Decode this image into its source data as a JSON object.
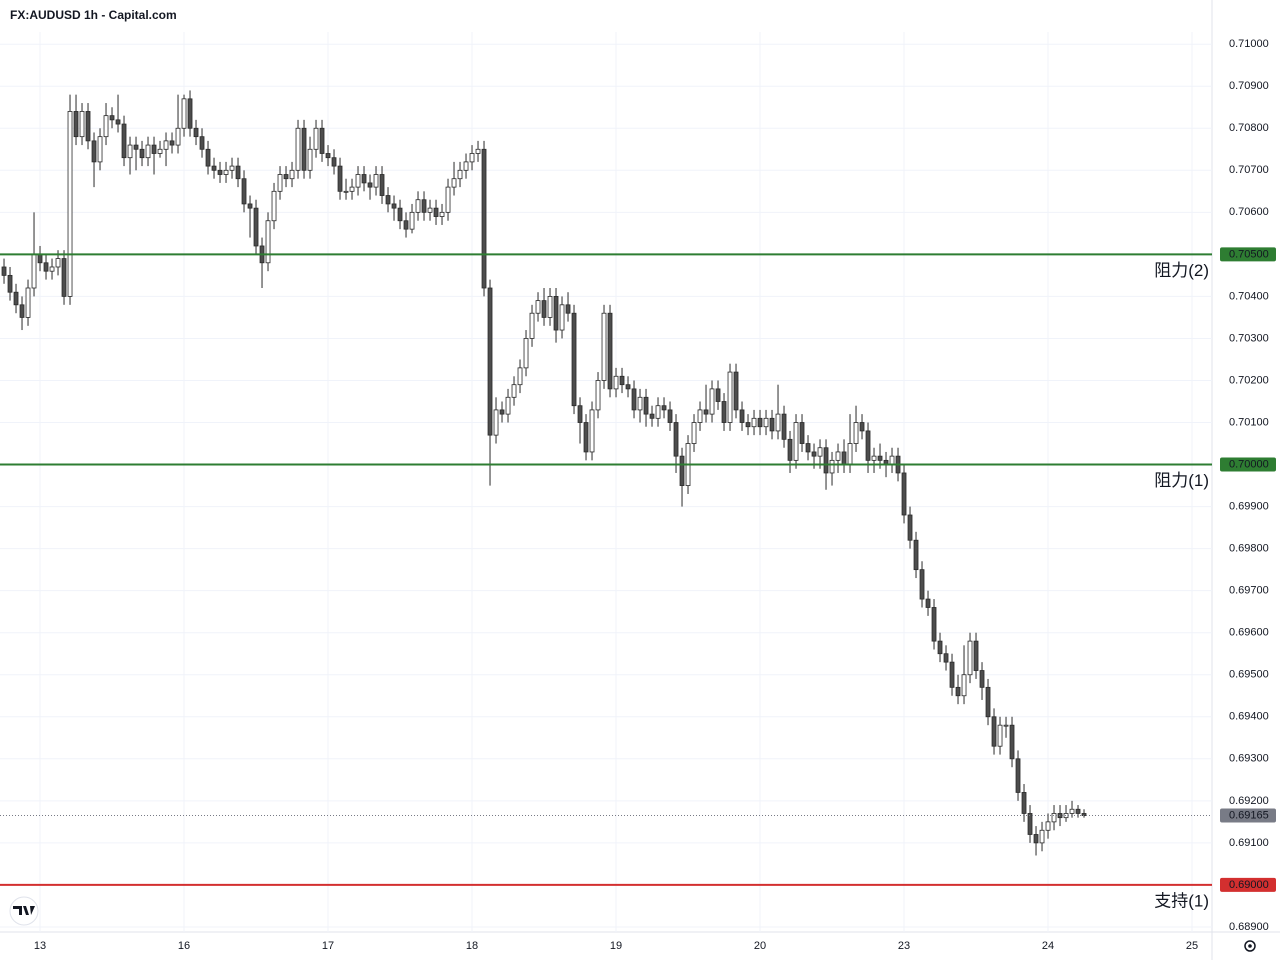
{
  "chart_data": {
    "type": "candlestick",
    "title": "FX:AUDUSD 1h - Capital.com",
    "x": [
      -6,
      -5,
      -4,
      -3,
      -2,
      -1,
      0,
      1,
      2,
      3,
      4,
      5,
      6,
      7,
      8,
      9,
      10,
      11,
      12,
      13,
      14,
      15,
      16,
      17,
      18,
      19,
      20,
      21,
      22,
      23,
      24,
      25,
      26,
      27,
      28,
      29,
      30,
      31,
      32,
      33,
      34,
      35,
      36,
      37,
      38,
      39,
      40,
      41,
      42,
      43,
      44,
      45,
      46,
      47,
      48,
      49,
      50,
      51,
      52,
      53,
      54,
      55,
      56,
      57,
      58,
      59,
      60,
      61,
      62,
      63,
      64,
      65,
      66,
      67,
      68,
      69,
      70,
      71,
      72,
      73,
      74,
      75,
      76,
      77,
      78,
      79,
      80,
      81,
      82,
      83,
      84,
      85,
      86,
      87,
      88,
      89,
      90,
      91,
      92,
      93,
      94,
      95,
      96,
      97,
      98,
      99,
      100,
      101,
      102,
      103,
      104,
      105,
      106,
      107,
      108,
      109,
      110,
      111,
      112,
      113,
      114,
      115,
      116,
      117,
      118,
      119,
      120,
      121,
      122,
      123,
      124,
      125,
      126,
      127,
      128,
      129,
      130,
      131,
      132,
      133,
      134,
      135,
      136,
      137,
      138,
      139,
      140,
      141,
      142,
      143,
      144,
      145,
      146,
      147,
      148,
      149,
      150,
      151,
      152,
      153,
      154,
      155,
      156,
      157,
      158,
      159,
      160,
      161,
      162,
      163,
      164,
      165,
      166,
      167,
      168,
      169,
      170,
      171,
      172,
      173,
      174
    ],
    "open": [
      0.7047,
      0.7045,
      0.7041,
      0.7038,
      0.7035,
      0.7042,
      0.705,
      0.7048,
      0.7046,
      0.7047,
      0.7049,
      0.704,
      0.7084,
      0.7078,
      0.7084,
      0.7077,
      0.7072,
      0.7078,
      0.7083,
      0.7082,
      0.7081,
      0.7073,
      0.7076,
      0.7075,
      0.7073,
      0.7076,
      0.7074,
      0.7075,
      0.7077,
      0.7076,
      0.708,
      0.7087,
      0.708,
      0.7078,
      0.7075,
      0.7071,
      0.707,
      0.7069,
      0.707,
      0.7071,
      0.7068,
      0.7062,
      0.7061,
      0.7052,
      0.7048,
      0.7058,
      0.7065,
      0.7069,
      0.7068,
      0.707,
      0.708,
      0.707,
      0.7075,
      0.708,
      0.7074,
      0.7073,
      0.7071,
      0.7065,
      0.7065,
      0.7066,
      0.7069,
      0.7067,
      0.7066,
      0.7069,
      0.7064,
      0.7062,
      0.7061,
      0.7058,
      0.7056,
      0.706,
      0.7063,
      0.706,
      0.7061,
      0.7059,
      0.706,
      0.7066,
      0.7068,
      0.707,
      0.7072,
      0.7074,
      0.7075,
      0.7042,
      0.7007,
      0.7013,
      0.7012,
      0.7016,
      0.7019,
      0.7023,
      0.703,
      0.7036,
      0.7039,
      0.7035,
      0.704,
      0.7032,
      0.7038,
      0.7036,
      0.7014,
      0.701,
      0.7003,
      0.7013,
      0.702,
      0.7036,
      0.7018,
      0.7021,
      0.7019,
      0.7018,
      0.7013,
      0.7016,
      0.7012,
      0.7011,
      0.7014,
      0.7013,
      0.701,
      0.7002,
      0.6995,
      0.7005,
      0.701,
      0.7013,
      0.7012,
      0.7018,
      0.7015,
      0.701,
      0.7022,
      0.7013,
      0.701,
      0.7009,
      0.7011,
      0.7009,
      0.7011,
      0.7008,
      0.7012,
      0.7006,
      0.7001,
      0.701,
      0.7005,
      0.7003,
      0.7002,
      0.7004,
      0.6998,
      0.7001,
      0.7003,
      0.7,
      0.7005,
      0.701,
      0.7008,
      0.7001,
      0.7002,
      0.7001,
      0.7,
      0.7002,
      0.6998,
      0.6988,
      0.6982,
      0.6975,
      0.6968,
      0.6966,
      0.6958,
      0.6955,
      0.6953,
      0.6947,
      0.6945,
      0.695,
      0.6958,
      0.6951,
      0.6947,
      0.694,
      0.6933,
      0.6938,
      0.6938,
      0.693,
      0.6922,
      0.6917,
      0.6912,
      0.691,
      0.6913,
      0.6915,
      0.6917,
      0.6916,
      0.6917,
      0.6918,
      0.6917
    ],
    "high": [
      0.7049,
      0.7047,
      0.7043,
      0.704,
      0.7044,
      0.706,
      0.7052,
      0.705,
      0.7049,
      0.7051,
      0.7051,
      0.7088,
      0.7088,
      0.7086,
      0.7086,
      0.7079,
      0.708,
      0.7086,
      0.7085,
      0.7088,
      0.7083,
      0.7078,
      0.7078,
      0.7077,
      0.7078,
      0.7078,
      0.7077,
      0.7079,
      0.7079,
      0.7088,
      0.7088,
      0.7089,
      0.7082,
      0.708,
      0.7077,
      0.7073,
      0.7072,
      0.7072,
      0.7073,
      0.7073,
      0.707,
      0.7064,
      0.7063,
      0.7054,
      0.706,
      0.7067,
      0.7071,
      0.7071,
      0.7072,
      0.7082,
      0.7082,
      0.7078,
      0.7082,
      0.7082,
      0.7076,
      0.7075,
      0.7073,
      0.7068,
      0.7068,
      0.7071,
      0.7071,
      0.7069,
      0.7071,
      0.7071,
      0.7066,
      0.7064,
      0.7063,
      0.706,
      0.7062,
      0.7065,
      0.7065,
      0.7063,
      0.7063,
      0.7062,
      0.7068,
      0.7072,
      0.7072,
      0.7074,
      0.7076,
      0.7077,
      0.7077,
      0.7044,
      0.7016,
      0.7015,
      0.7018,
      0.7021,
      0.7025,
      0.7032,
      0.7038,
      0.7041,
      0.7042,
      0.7042,
      0.7042,
      0.704,
      0.7041,
      0.7038,
      0.7016,
      0.7012,
      0.7015,
      0.7022,
      0.7038,
      0.7038,
      0.7023,
      0.7023,
      0.7021,
      0.702,
      0.7018,
      0.7018,
      0.7014,
      0.7016,
      0.7016,
      0.7015,
      0.7012,
      0.7004,
      0.7007,
      0.7012,
      0.7015,
      0.7019,
      0.702,
      0.702,
      0.7017,
      0.7024,
      0.7024,
      0.7015,
      0.7012,
      0.7013,
      0.7013,
      0.7013,
      0.7013,
      0.7019,
      0.7014,
      0.7008,
      0.7012,
      0.7012,
      0.7007,
      0.7005,
      0.7006,
      0.7006,
      0.7003,
      0.7005,
      0.7006,
      0.7012,
      0.7014,
      0.7012,
      0.701,
      0.7004,
      0.7005,
      0.7003,
      0.7004,
      0.7004,
      0.7,
      0.699,
      0.6984,
      0.6977,
      0.697,
      0.6968,
      0.696,
      0.6957,
      0.6955,
      0.695,
      0.6957,
      0.696,
      0.696,
      0.6953,
      0.6949,
      0.6942,
      0.694,
      0.694,
      0.694,
      0.6932,
      0.6924,
      0.6919,
      0.6914,
      0.6915,
      0.6917,
      0.6919,
      0.6919,
      0.6919,
      0.692,
      0.6919,
      0.6918
    ],
    "low": [
      0.7043,
      0.7039,
      0.7036,
      0.7032,
      0.7033,
      0.704,
      0.7046,
      0.7044,
      0.7044,
      0.7045,
      0.7038,
      0.7038,
      0.7076,
      0.7076,
      0.7075,
      0.7066,
      0.707,
      0.7076,
      0.708,
      0.7079,
      0.7071,
      0.7069,
      0.707,
      0.7071,
      0.7071,
      0.7069,
      0.7073,
      0.7071,
      0.7074,
      0.7074,
      0.7078,
      0.7078,
      0.7076,
      0.7073,
      0.7069,
      0.7068,
      0.7067,
      0.7067,
      0.7068,
      0.7066,
      0.706,
      0.7054,
      0.705,
      0.7042,
      0.7046,
      0.7056,
      0.7063,
      0.7066,
      0.7066,
      0.7068,
      0.7068,
      0.7068,
      0.7073,
      0.7072,
      0.7071,
      0.7069,
      0.7063,
      0.7063,
      0.7063,
      0.7064,
      0.7065,
      0.7063,
      0.7064,
      0.7062,
      0.706,
      0.7058,
      0.7056,
      0.7054,
      0.7055,
      0.7058,
      0.7058,
      0.7058,
      0.7057,
      0.7057,
      0.7058,
      0.7064,
      0.7066,
      0.7068,
      0.707,
      0.7072,
      0.704,
      0.6995,
      0.7005,
      0.701,
      0.701,
      0.7014,
      0.7017,
      0.7021,
      0.7028,
      0.7034,
      0.7033,
      0.7033,
      0.7029,
      0.703,
      0.7034,
      0.7012,
      0.7005,
      0.7001,
      0.7001,
      0.7011,
      0.7018,
      0.7016,
      0.7016,
      0.7017,
      0.7016,
      0.7011,
      0.701,
      0.7009,
      0.7009,
      0.7009,
      0.7011,
      0.7008,
      0.6998,
      0.699,
      0.6993,
      0.7003,
      0.7008,
      0.701,
      0.701,
      0.7013,
      0.7008,
      0.7008,
      0.7011,
      0.7008,
      0.7007,
      0.7007,
      0.7007,
      0.7007,
      0.7006,
      0.7006,
      0.7004,
      0.6998,
      0.6999,
      0.7003,
      0.7001,
      0.6999,
      0.6999,
      0.6994,
      0.6995,
      0.6998,
      0.6998,
      0.6998,
      0.7003,
      0.7006,
      0.6998,
      0.6998,
      0.6999,
      0.6997,
      0.6998,
      0.6996,
      0.6986,
      0.698,
      0.6973,
      0.6966,
      0.6964,
      0.6956,
      0.6953,
      0.6951,
      0.6945,
      0.6943,
      0.6943,
      0.6948,
      0.6949,
      0.6944,
      0.6938,
      0.6931,
      0.6931,
      0.6935,
      0.6928,
      0.692,
      0.6915,
      0.691,
      0.6907,
      0.6908,
      0.6911,
      0.6913,
      0.6914,
      0.6915,
      0.6916,
      0.6916,
      0.6916
    ],
    "close": [
      0.7045,
      0.7041,
      0.7038,
      0.7035,
      0.7042,
      0.705,
      0.7048,
      0.7046,
      0.7047,
      0.7049,
      0.704,
      0.7084,
      0.7078,
      0.7084,
      0.7077,
      0.7072,
      0.7078,
      0.7083,
      0.7082,
      0.7081,
      0.7073,
      0.7076,
      0.7075,
      0.7073,
      0.7076,
      0.7074,
      0.7075,
      0.7077,
      0.7076,
      0.708,
      0.7087,
      0.708,
      0.7078,
      0.7075,
      0.7071,
      0.707,
      0.7069,
      0.707,
      0.7071,
      0.7068,
      0.7062,
      0.7061,
      0.7052,
      0.7048,
      0.7058,
      0.7065,
      0.7069,
      0.7068,
      0.707,
      0.708,
      0.707,
      0.7075,
      0.708,
      0.7074,
      0.7073,
      0.7071,
      0.7065,
      0.7065,
      0.7066,
      0.7069,
      0.7067,
      0.7066,
      0.7069,
      0.7064,
      0.7062,
      0.7061,
      0.7058,
      0.7056,
      0.706,
      0.7063,
      0.706,
      0.7061,
      0.7059,
      0.706,
      0.7066,
      0.7068,
      0.707,
      0.7072,
      0.7074,
      0.7075,
      0.7042,
      0.7007,
      0.7013,
      0.7012,
      0.7016,
      0.7019,
      0.7023,
      0.703,
      0.7036,
      0.7039,
      0.7035,
      0.704,
      0.7032,
      0.7038,
      0.7036,
      0.7014,
      0.701,
      0.7003,
      0.7013,
      0.702,
      0.7036,
      0.7018,
      0.7021,
      0.7019,
      0.7018,
      0.7013,
      0.7016,
      0.7012,
      0.7011,
      0.7014,
      0.7013,
      0.701,
      0.7002,
      0.6995,
      0.7005,
      0.701,
      0.7013,
      0.7012,
      0.7018,
      0.7015,
      0.701,
      0.7022,
      0.7013,
      0.701,
      0.7009,
      0.7011,
      0.7009,
      0.7011,
      0.7008,
      0.7012,
      0.7006,
      0.7001,
      0.701,
      0.7005,
      0.7003,
      0.7002,
      0.7004,
      0.6998,
      0.7001,
      0.7003,
      0.7,
      0.7005,
      0.701,
      0.7008,
      0.7001,
      0.7002,
      0.7001,
      0.7,
      0.7002,
      0.6998,
      0.6988,
      0.6982,
      0.6975,
      0.6968,
      0.6966,
      0.6958,
      0.6955,
      0.6953,
      0.6947,
      0.6945,
      0.695,
      0.6958,
      0.6951,
      0.6947,
      0.694,
      0.6933,
      0.6938,
      0.6938,
      0.693,
      0.6922,
      0.6917,
      0.6912,
      0.691,
      0.6913,
      0.6915,
      0.6917,
      0.6916,
      0.6917,
      0.6918,
      0.6917,
      0.69165
    ],
    "up_color": "#ffffff",
    "down_color": "#4d4d4d",
    "wick_color": "#2a2a2a",
    "xlim": [
      -6.67,
      195.33
    ],
    "xticks": [
      {
        "value": 0,
        "label": "13"
      },
      {
        "value": 24,
        "label": "16"
      },
      {
        "value": 48,
        "label": "17"
      },
      {
        "value": 72,
        "label": "18"
      },
      {
        "value": 96,
        "label": "19"
      },
      {
        "value": 120,
        "label": "20"
      },
      {
        "value": 144,
        "label": "23"
      },
      {
        "value": 168,
        "label": "24"
      },
      {
        "value": 192,
        "label": "25"
      }
    ],
    "ylim": [
      0.68888,
      0.71029
    ],
    "yticks": [
      {
        "value": 0.689,
        "label": "0.68900"
      },
      {
        "value": 0.69,
        "label": "0.69000"
      },
      {
        "value": 0.691,
        "label": "0.69100"
      },
      {
        "value": 0.692,
        "label": "0.69200"
      },
      {
        "value": 0.693,
        "label": "0.69300"
      },
      {
        "value": 0.694,
        "label": "0.69400"
      },
      {
        "value": 0.695,
        "label": "0.69500"
      },
      {
        "value": 0.696,
        "label": "0.69600"
      },
      {
        "value": 0.697,
        "label": "0.69700"
      },
      {
        "value": 0.698,
        "label": "0.69800"
      },
      {
        "value": 0.699,
        "label": "0.69900"
      },
      {
        "value": 0.7,
        "label": "0.70000"
      },
      {
        "value": 0.701,
        "label": "0.70100"
      },
      {
        "value": 0.702,
        "label": "0.70200"
      },
      {
        "value": 0.703,
        "label": "0.70300"
      },
      {
        "value": 0.704,
        "label": "0.70400"
      },
      {
        "value": 0.705,
        "label": "0.70500"
      },
      {
        "value": 0.706,
        "label": "0.70600"
      },
      {
        "value": 0.707,
        "label": "0.70700"
      },
      {
        "value": 0.708,
        "label": "0.70800"
      },
      {
        "value": 0.709,
        "label": "0.70900"
      },
      {
        "value": 0.71,
        "label": "0.71000"
      }
    ],
    "grid": true,
    "levels": [
      {
        "name": "阻力(2)",
        "value": 0.705,
        "value_label": "0.70500",
        "color": "#2e7d32"
      },
      {
        "name": "阻力(1)",
        "value": 0.7,
        "value_label": "0.70000",
        "color": "#2e7d32"
      },
      {
        "name": "支持(1)",
        "value": 0.69,
        "value_label": "0.69000",
        "color": "#d32f2f"
      }
    ],
    "last_price": {
      "value": 0.69165,
      "label": "0.69165",
      "color": "#787b86"
    }
  }
}
